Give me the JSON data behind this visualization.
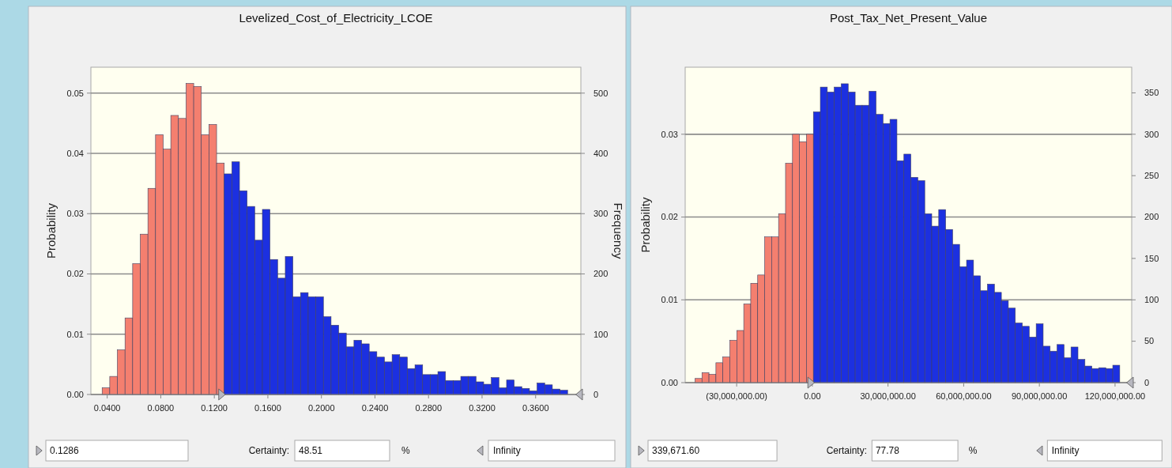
{
  "chart_data": [
    {
      "type": "histogram",
      "title": "Levelized_Cost_of_Electricity_LCOE",
      "ylabel": "Probability",
      "y2label": "Frequency",
      "bins": [
        0.0362,
        0.0419,
        0.0476,
        0.0533,
        0.059,
        0.0647,
        0.0704,
        0.0761,
        0.0818,
        0.0875,
        0.0932,
        0.0989,
        0.1046,
        0.1103,
        0.116,
        0.1217,
        0.1274,
        0.1331,
        0.1388,
        0.1445,
        0.1502,
        0.1559,
        0.1616,
        0.1673,
        0.173,
        0.1787,
        0.1844,
        0.1901,
        0.1958,
        0.2015,
        0.2072,
        0.2129,
        0.2186,
        0.2243,
        0.23,
        0.2357,
        0.2414,
        0.2471,
        0.2528,
        0.2585,
        0.2642,
        0.2699,
        0.2756,
        0.2813,
        0.287,
        0.2927,
        0.2984,
        0.3041,
        0.3098,
        0.3155,
        0.3212,
        0.3269,
        0.3326,
        0.3383,
        0.344,
        0.3497,
        0.3554,
        0.3611,
        0.3668,
        0.3725,
        0.3782,
        0.3839
      ],
      "series": [
        {
          "color": "#f47f6f",
          "values": [
            0.0011,
            0.003,
            0.0074,
            0.0127,
            0.0217,
            0.0266,
            0.0342,
            0.0431,
            0.0407,
            0.0463,
            0.0458,
            0.0516,
            0.0511,
            0.0431,
            0.0448,
            0.0384,
            null,
            null,
            null,
            null,
            null,
            null,
            null,
            null,
            null,
            null,
            null,
            null,
            null,
            null,
            null,
            null,
            null,
            null,
            null,
            null,
            null,
            null,
            null,
            null,
            null,
            null,
            null,
            null,
            null,
            null,
            null,
            null,
            null,
            null,
            null,
            null,
            null,
            null,
            null,
            null,
            null,
            null,
            null,
            null,
            null
          ]
        },
        {
          "color": "#1c30e0",
          "values": [
            null,
            null,
            null,
            null,
            null,
            null,
            null,
            null,
            null,
            null,
            null,
            null,
            null,
            null,
            null,
            null,
            0.0366,
            0.0386,
            0.0338,
            0.0312,
            0.0256,
            0.0307,
            0.0224,
            0.0193,
            0.0229,
            0.0162,
            0.0169,
            0.0162,
            0.0162,
            0.0129,
            0.0115,
            0.0102,
            0.0079,
            0.009,
            0.0084,
            0.0071,
            0.0062,
            0.0054,
            0.0066,
            0.0062,
            0.0043,
            0.0049,
            0.0033,
            0.0033,
            0.0038,
            0.0023,
            0.0023,
            0.003,
            0.003,
            0.0021,
            0.0017,
            0.0028,
            0.0011,
            0.0024,
            0.0013,
            0.001,
            0.0006,
            0.0019,
            0.0016,
            0.0009,
            0.0007
          ]
        }
      ],
      "xlim": [
        0.0278,
        0.3938
      ],
      "xticks": [
        {
          "value": 0.04,
          "label": "0.0400"
        },
        {
          "value": 0.08,
          "label": "0.0800"
        },
        {
          "value": 0.12,
          "label": "0.1200"
        },
        {
          "value": 0.16,
          "label": "0.1600"
        },
        {
          "value": 0.2,
          "label": "0.2000"
        },
        {
          "value": 0.24,
          "label": "0.2400"
        },
        {
          "value": 0.28,
          "label": "0.2800"
        },
        {
          "value": 0.32,
          "label": "0.3200"
        },
        {
          "value": 0.36,
          "label": "0.3600"
        }
      ],
      "ylim": [
        0,
        0.0543
      ],
      "yticks": [
        {
          "value": 0,
          "label": "0.00"
        },
        {
          "value": 0.01,
          "label": "0.01"
        },
        {
          "value": 0.02,
          "label": "0.02"
        },
        {
          "value": 0.03,
          "label": "0.03"
        },
        {
          "value": 0.04,
          "label": "0.04"
        },
        {
          "value": 0.05,
          "label": "0.05"
        }
      ],
      "y2lim": [
        0,
        543
      ],
      "y2ticks": [
        0,
        100,
        200,
        300,
        400,
        500
      ],
      "grid": "y",
      "annotations": [
        "0.1286",
        "Certainty:",
        "48.51",
        "%",
        "Infinity"
      ]
    },
    {
      "type": "histogram",
      "title": "Post_Tax_Net_Present_Value",
      "ylabel": "Probability",
      "bins": [
        -46500000,
        -43740000,
        -40980000,
        -38220000,
        -35460000,
        -32700000,
        -29940000,
        -27180000,
        -24420000,
        -21660000,
        -18900000,
        -16140000,
        -13380000,
        -10620000,
        -7860000,
        -5100000,
        -2340000,
        420000,
        3180000,
        5940000,
        8700000,
        11460000,
        14220000,
        16980000,
        19740000,
        22500000,
        25260000,
        28020000,
        30780000,
        33540000,
        36300000,
        39060000,
        41820000,
        44580000,
        47340000,
        50100000,
        52860000,
        55620000,
        58380000,
        61140000,
        63900000,
        66660000,
        69420000,
        72180000,
        74940000,
        77700000,
        80460000,
        83220000,
        85980000,
        88740000,
        91500000,
        94260000,
        97020000,
        99780000,
        102540000,
        105300000,
        108060000,
        110820000,
        113580000,
        116340000,
        119100000,
        121860000
      ],
      "series": [
        {
          "color": "#f47f6f",
          "values": [
            0.0005,
            0.0012,
            0.001,
            0.0024,
            0.0031,
            0.0051,
            0.0063,
            0.0095,
            0.012,
            0.013,
            0.0176,
            0.0176,
            0.0204,
            0.0265,
            0.03,
            0.0291,
            0.03,
            null,
            null,
            null,
            null,
            null,
            null,
            null,
            null,
            null,
            null,
            null,
            null,
            null,
            null,
            null,
            null,
            null,
            null,
            null,
            null,
            null,
            null,
            null,
            null,
            null,
            null,
            null,
            null,
            null,
            null,
            null,
            null,
            null,
            null,
            null,
            null,
            null,
            null,
            null,
            null,
            null,
            null,
            null,
            null
          ]
        },
        {
          "color": "#1c30e0",
          "values": [
            null,
            null,
            null,
            null,
            null,
            null,
            null,
            null,
            null,
            null,
            null,
            null,
            null,
            null,
            null,
            null,
            null,
            0.0327,
            0.0357,
            0.0351,
            0.0357,
            0.0361,
            0.0351,
            0.0335,
            0.0335,
            0.0352,
            0.0324,
            0.0313,
            0.0318,
            0.0268,
            0.0276,
            0.0248,
            0.0244,
            0.0204,
            0.0189,
            0.0209,
            0.0185,
            0.0167,
            0.014,
            0.0148,
            0.0129,
            0.0111,
            0.0119,
            0.0109,
            0.0099,
            0.009,
            0.0072,
            0.0068,
            0.0055,
            0.0071,
            0.0044,
            0.0038,
            0.0046,
            0.003,
            0.0043,
            0.0028,
            0.002,
            0.0017,
            0.0018,
            0.0017,
            0.0021
          ]
        }
      ],
      "xlim": [
        -50400000,
        126600000
      ],
      "xticks": [
        {
          "value": -30000000,
          "label": "(30,000,000.00)"
        },
        {
          "value": 0,
          "label": "0.00"
        },
        {
          "value": 30000000,
          "label": "30,000,000.00"
        },
        {
          "value": 60000000,
          "label": "60,000,000.00"
        },
        {
          "value": 90000000,
          "label": "90,000,000.00"
        },
        {
          "value": 120000000,
          "label": "120,000,000.00"
        }
      ],
      "ylim": [
        0,
        0.0381
      ],
      "yticks": [
        {
          "value": 0,
          "label": "0.00"
        },
        {
          "value": 0.01,
          "label": "0.01"
        },
        {
          "value": 0.02,
          "label": "0.02"
        },
        {
          "value": 0.03,
          "label": "0.03"
        }
      ],
      "y2lim": [
        0,
        381
      ],
      "y2ticks": [
        0,
        50,
        100,
        150,
        200,
        250,
        300,
        350
      ],
      "grid": "y",
      "annotations": [
        "339,671.60",
        "Certainty:",
        "77.78",
        "%",
        "Infinity"
      ]
    }
  ]
}
